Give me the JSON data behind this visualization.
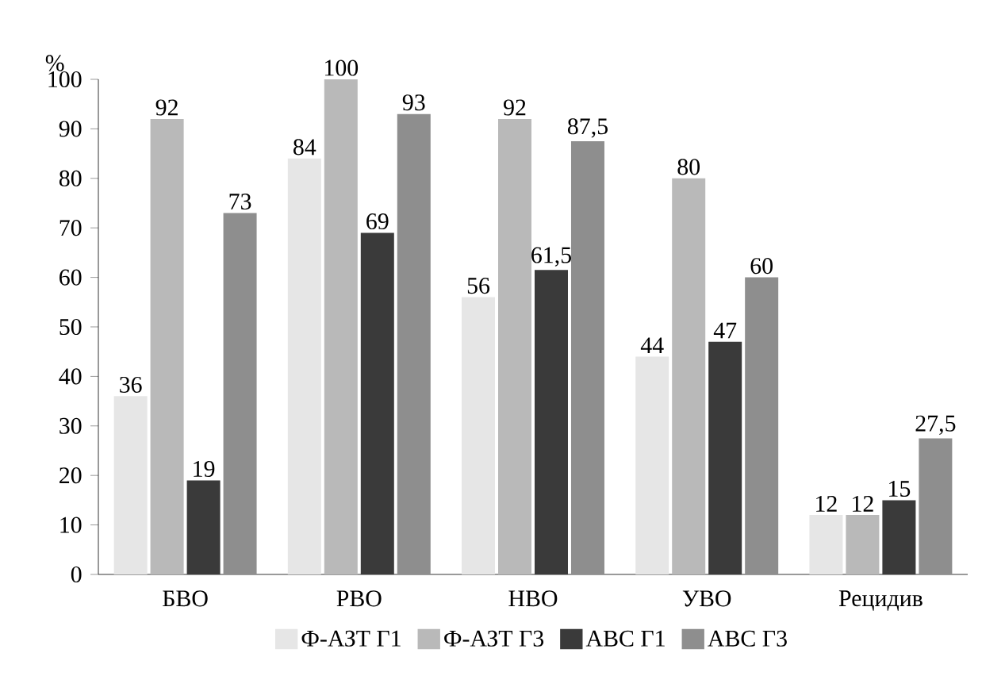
{
  "chart_data": {
    "type": "bar",
    "ylabel": "%",
    "categories": [
      "БВО",
      "РВО",
      "НВО",
      "УВО",
      "Рецидив"
    ],
    "series": [
      {
        "name": "Ф-АЗТ Г1",
        "color": "#e6e6e6",
        "values": [
          36,
          84,
          56,
          44,
          12
        ],
        "value_labels": [
          "36",
          "84",
          "56",
          "44",
          "12"
        ]
      },
      {
        "name": "Ф-АЗТ Г3",
        "color": "#b9b9b9",
        "values": [
          92,
          100,
          92,
          80,
          12
        ],
        "value_labels": [
          "92",
          "100",
          "92",
          "80",
          "12"
        ]
      },
      {
        "name": "АВС Г1",
        "color": "#3a3a3a",
        "values": [
          19,
          69,
          61.5,
          47,
          15
        ],
        "value_labels": [
          "19",
          "69",
          "61,5",
          "47",
          "15"
        ]
      },
      {
        "name": "АВС Г3",
        "color": "#8e8e8e",
        "values": [
          73,
          93,
          87.5,
          60,
          27.5
        ],
        "value_labels": [
          "73",
          "93",
          "87,5",
          "60",
          "27,5"
        ]
      }
    ],
    "ylim": [
      0,
      100
    ],
    "yticks": [
      0,
      10,
      20,
      30,
      40,
      50,
      60,
      70,
      80,
      90,
      100
    ],
    "legend": "bottom"
  }
}
